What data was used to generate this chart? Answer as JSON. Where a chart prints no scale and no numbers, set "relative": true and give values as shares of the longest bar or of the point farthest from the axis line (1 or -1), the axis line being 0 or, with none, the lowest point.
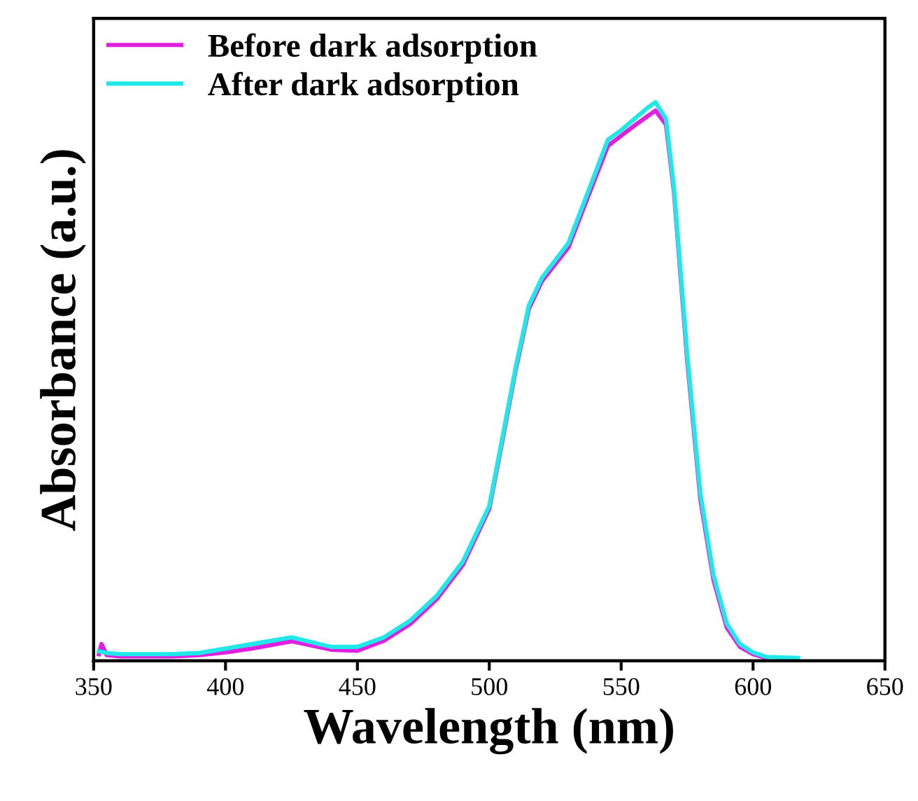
{
  "chart_data": {
    "type": "line",
    "xlabel": "Wavelength (nm)",
    "ylabel": "Absorbance (a.u.)",
    "relative": true,
    "xlim": [
      350,
      650
    ],
    "xticks": [
      350,
      400,
      450,
      500,
      550,
      600,
      650
    ],
    "tick_labels": "x",
    "legend": "top left",
    "grid": false,
    "marker": "none",
    "line_style": "solid",
    "series": [
      {
        "name": "Before dark adsorption",
        "color": "#e020e0",
        "x": [
          352,
          353,
          355,
          360,
          370,
          380,
          390,
          400,
          410,
          425,
          440,
          450,
          460,
          470,
          480,
          490,
          500,
          505,
          510,
          515,
          520,
          530,
          540,
          545,
          550,
          555,
          560,
          563,
          567,
          570,
          575,
          580,
          585,
          590,
          595,
          600,
          605
        ],
        "values": [
          0.012,
          0.03,
          0.01,
          0.008,
          0.008,
          0.008,
          0.01,
          0.015,
          0.022,
          0.035,
          0.02,
          0.018,
          0.036,
          0.066,
          0.11,
          0.172,
          0.272,
          0.395,
          0.52,
          0.63,
          0.68,
          0.74,
          0.862,
          0.922,
          0.94,
          0.958,
          0.975,
          0.985,
          0.96,
          0.84,
          0.54,
          0.29,
          0.145,
          0.06,
          0.025,
          0.012,
          0.005
        ]
      },
      {
        "name": "After dark adsorption",
        "color": "#20e8e8",
        "x": [
          352,
          355,
          360,
          370,
          380,
          390,
          400,
          410,
          425,
          440,
          450,
          460,
          470,
          480,
          490,
          500,
          505,
          510,
          515,
          520,
          530,
          540,
          545,
          550,
          555,
          560,
          563,
          567,
          570,
          575,
          580,
          585,
          590,
          595,
          600,
          605,
          617
        ],
        "values": [
          0.017,
          0.014,
          0.012,
          0.012,
          0.012,
          0.014,
          0.022,
          0.03,
          0.042,
          0.025,
          0.025,
          0.042,
          0.072,
          0.116,
          0.178,
          0.277,
          0.4,
          0.525,
          0.636,
          0.686,
          0.748,
          0.871,
          0.933,
          0.95,
          0.97,
          0.99,
          1.0,
          0.97,
          0.847,
          0.55,
          0.3,
          0.153,
          0.067,
          0.03,
          0.015,
          0.007,
          0.005
        ]
      }
    ]
  }
}
